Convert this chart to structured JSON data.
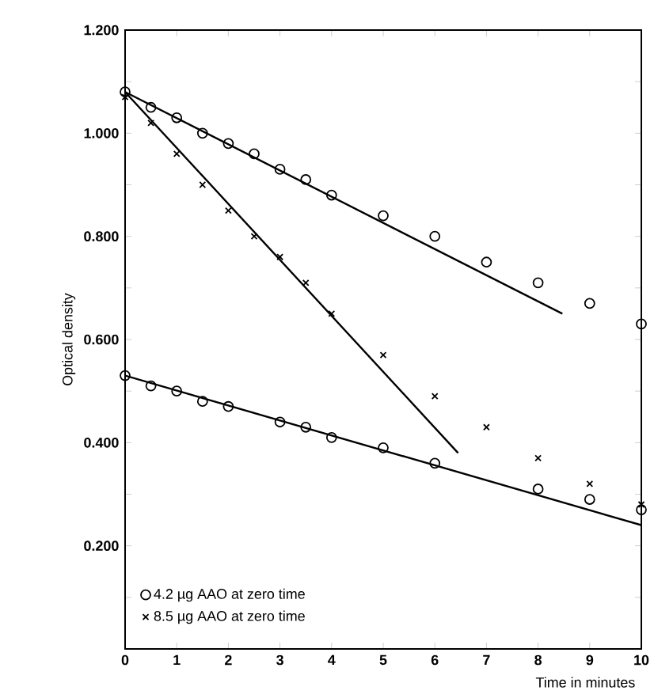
{
  "chart_data": {
    "type": "scatter",
    "xlabel": "Time in minutes",
    "ylabel": "Optical density",
    "xlim": [
      0,
      10
    ],
    "ylim": [
      0,
      1.2
    ],
    "xticks": [
      0,
      1,
      2,
      3,
      4,
      5,
      6,
      7,
      8,
      9,
      10
    ],
    "yticks": [
      {
        "value": 0.1,
        "label": null
      },
      {
        "value": 0.2,
        "label": "0.200"
      },
      {
        "value": 0.3,
        "label": null
      },
      {
        "value": 0.4,
        "label": "0.400"
      },
      {
        "value": 0.5,
        "label": null
      },
      {
        "value": 0.6,
        "label": "0.600"
      },
      {
        "value": 0.7,
        "label": null
      },
      {
        "value": 0.8,
        "label": "0.800"
      },
      {
        "value": 0.9,
        "label": null
      },
      {
        "value": 1.0,
        "label": "1.000"
      },
      {
        "value": 1.1,
        "label": null
      },
      {
        "value": 1.2,
        "label": "1.200"
      }
    ],
    "legend": "bottom left",
    "series": [
      {
        "name": "4.2 µg AAO at zero time",
        "type": "scatter",
        "marker": "circle",
        "color": "#000000",
        "x": [
          0,
          0.5,
          1,
          1.5,
          2,
          2.5,
          3,
          3.5,
          4,
          5,
          6,
          7,
          8,
          9,
          10
        ],
        "values": [
          1.08,
          1.05,
          1.03,
          1.0,
          0.98,
          0.96,
          0.93,
          0.91,
          0.88,
          0.84,
          0.8,
          0.75,
          0.71,
          0.67,
          0.63
        ]
      },
      {
        "name": "8.5 µg AAO at zero time",
        "type": "scatter",
        "marker": "cross",
        "color": "#000000",
        "x": [
          0,
          0.5,
          1,
          1.5,
          2,
          2.5,
          3,
          3.5,
          4,
          5,
          6,
          7,
          8,
          9,
          10
        ],
        "values": [
          1.07,
          1.02,
          0.96,
          0.9,
          0.85,
          0.8,
          0.76,
          0.71,
          0.65,
          0.57,
          0.49,
          0.43,
          0.37,
          0.32,
          0.28
        ]
      },
      {
        "type": "scatter",
        "marker": "circle",
        "color": "#000000",
        "x": [
          0,
          0.5,
          1,
          1.5,
          2,
          3,
          3.5,
          4,
          5,
          6,
          8,
          9,
          10
        ],
        "values": [
          0.53,
          0.51,
          0.5,
          0.48,
          0.47,
          0.44,
          0.43,
          0.41,
          0.39,
          0.36,
          0.31,
          0.29,
          0.27
        ]
      },
      {
        "type": "line",
        "marker": "none",
        "color": "#000000",
        "x": [
          0,
          8.47
        ],
        "values": [
          1.08,
          0.65
        ]
      },
      {
        "type": "line",
        "marker": "none",
        "color": "#000000",
        "x": [
          0,
          6.45
        ],
        "values": [
          1.08,
          0.38
        ]
      },
      {
        "type": "line",
        "marker": "none",
        "color": "#000000",
        "x": [
          0,
          10
        ],
        "values": [
          0.53,
          0.24
        ]
      }
    ]
  }
}
